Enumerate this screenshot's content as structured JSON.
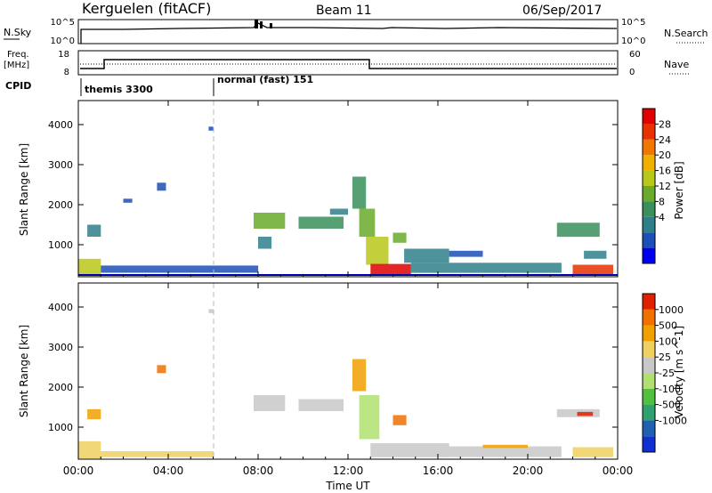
{
  "header": {
    "station": "Kerguelen (fitACF)",
    "beam": "Beam 11",
    "date": "06/Sep/2017"
  },
  "top_panel": {
    "left_label": "N.Sky",
    "left_ticks": [
      "10^5",
      "10^0"
    ],
    "right_ticks": [
      "10^5",
      "10^0"
    ],
    "right_label": "N.Search",
    "right_line_style": "dotted"
  },
  "freq_panel": {
    "left_label_1": "Freq.",
    "left_label_2": "[MHz]",
    "left_ticks": [
      "18",
      "8"
    ],
    "right_ticks": [
      "60",
      "0"
    ],
    "right_label": "Nave",
    "right_line_style": "dotted"
  },
  "cpid_panel": {
    "label": "CPID",
    "programs": [
      {
        "name": "themis 3300",
        "start_hour": 0
      },
      {
        "name": "normal (fast) 151",
        "start_hour": 6
      }
    ]
  },
  "x_axis": {
    "label": "Time UT",
    "ticks": [
      "00:00",
      "04:00",
      "08:00",
      "12:00",
      "16:00",
      "20:00",
      "00:00"
    ]
  },
  "power_colorbar": {
    "label": "Power [dB]",
    "ticks": [
      "28",
      "24",
      "20",
      "16",
      "12",
      "8",
      "4"
    ],
    "colors": [
      "#0000ee",
      "#1c4fb8",
      "#2f7f8a",
      "#3a8f5a",
      "#6aaa2a",
      "#b8c81a",
      "#f0b000",
      "#f07800",
      "#e83000",
      "#e00000"
    ]
  },
  "velocity_colorbar": {
    "label": "Velocity [m s^-1]",
    "ticks": [
      "1000",
      "500",
      "100",
      "25",
      "-25",
      "-100",
      "-500",
      "-1000"
    ],
    "colors": [
      "#1030d0",
      "#2060b0",
      "#30a070",
      "#50c040",
      "#b0e070",
      "#c8c8c8",
      "#f0d060",
      "#f0a000",
      "#f07000",
      "#e02000"
    ]
  },
  "chart_data": [
    {
      "type": "heatmap",
      "name": "power",
      "ylabel": "Slant Range [km]",
      "ylim": [
        200,
        4600
      ],
      "yticks": [
        1000,
        2000,
        3000,
        4000
      ],
      "xlim": [
        0,
        24
      ],
      "grid": false,
      "patches": [
        {
          "t0": 0.0,
          "t1": 1.0,
          "r0": 220,
          "r1": 650,
          "level": 5
        },
        {
          "t0": 0.4,
          "t1": 1.0,
          "r0": 1200,
          "r1": 1500,
          "level": 2
        },
        {
          "t0": 1.0,
          "t1": 8.0,
          "r0": 300,
          "r1": 480,
          "level": 1
        },
        {
          "t0": 2.0,
          "t1": 2.4,
          "r0": 2050,
          "r1": 2150,
          "level": 1
        },
        {
          "t0": 3.5,
          "t1": 3.9,
          "r0": 2350,
          "r1": 2550,
          "level": 1
        },
        {
          "t0": 5.8,
          "t1": 6.0,
          "r0": 3850,
          "r1": 3950,
          "level": 1
        },
        {
          "t0": 7.8,
          "t1": 9.2,
          "r0": 1400,
          "r1": 1800,
          "level": 4
        },
        {
          "t0": 8.0,
          "t1": 8.6,
          "r0": 900,
          "r1": 1200,
          "level": 2
        },
        {
          "t0": 9.8,
          "t1": 11.8,
          "r0": 1400,
          "r1": 1700,
          "level": 3
        },
        {
          "t0": 11.2,
          "t1": 12.0,
          "r0": 1750,
          "r1": 1900,
          "level": 2
        },
        {
          "t0": 12.2,
          "t1": 12.8,
          "r0": 1900,
          "r1": 2700,
          "level": 3
        },
        {
          "t0": 12.5,
          "t1": 13.2,
          "r0": 1200,
          "r1": 1900,
          "level": 4
        },
        {
          "t0": 12.8,
          "t1": 13.8,
          "r0": 500,
          "r1": 1200,
          "level": 5
        },
        {
          "t0": 13.0,
          "t1": 14.8,
          "r0": 250,
          "r1": 520,
          "level": 9
        },
        {
          "t0": 14.0,
          "t1": 14.6,
          "r0": 1050,
          "r1": 1300,
          "level": 4
        },
        {
          "t0": 14.5,
          "t1": 16.5,
          "r0": 550,
          "r1": 900,
          "level": 2
        },
        {
          "t0": 14.8,
          "t1": 21.5,
          "r0": 300,
          "r1": 550,
          "level": 2
        },
        {
          "t0": 16.5,
          "t1": 18.0,
          "r0": 700,
          "r1": 850,
          "level": 1
        },
        {
          "t0": 21.3,
          "t1": 23.2,
          "r0": 1200,
          "r1": 1550,
          "level": 3
        },
        {
          "t0": 22.0,
          "t1": 23.8,
          "r0": 250,
          "r1": 500,
          "level": 8
        },
        {
          "t0": 22.5,
          "t1": 23.5,
          "r0": 650,
          "r1": 850,
          "level": 2
        }
      ]
    },
    {
      "type": "heatmap",
      "name": "velocity",
      "ylabel": "Slant Range [km]",
      "ylim": [
        200,
        4600
      ],
      "yticks": [
        1000,
        2000,
        3000,
        4000
      ],
      "xlim": [
        0,
        24
      ],
      "grid": false,
      "patches": [
        {
          "t0": 0.0,
          "t1": 1.0,
          "r0": 220,
          "r1": 650,
          "level": 6
        },
        {
          "t0": 0.4,
          "t1": 1.0,
          "r0": 1200,
          "r1": 1450,
          "level": 7
        },
        {
          "t0": 1.0,
          "t1": 6.0,
          "r0": 250,
          "r1": 400,
          "level": 6
        },
        {
          "t0": 3.5,
          "t1": 3.9,
          "r0": 2350,
          "r1": 2550,
          "level": 8
        },
        {
          "t0": 5.8,
          "t1": 6.0,
          "r0": 3850,
          "r1": 3950,
          "level": 5
        },
        {
          "t0": 7.8,
          "t1": 9.2,
          "r0": 1400,
          "r1": 1800,
          "level": 5
        },
        {
          "t0": 9.8,
          "t1": 11.8,
          "r0": 1400,
          "r1": 1700,
          "level": 5
        },
        {
          "t0": 12.2,
          "t1": 12.8,
          "r0": 1900,
          "r1": 2700,
          "level": 7
        },
        {
          "t0": 12.5,
          "t1": 13.4,
          "r0": 700,
          "r1": 1800,
          "level": 4
        },
        {
          "t0": 13.0,
          "t1": 16.5,
          "r0": 250,
          "r1": 600,
          "level": 5
        },
        {
          "t0": 14.0,
          "t1": 14.6,
          "r0": 1050,
          "r1": 1300,
          "level": 8
        },
        {
          "t0": 16.5,
          "t1": 21.5,
          "r0": 250,
          "r1": 520,
          "level": 5
        },
        {
          "t0": 18.0,
          "t1": 20.0,
          "r0": 480,
          "r1": 560,
          "level": 7
        },
        {
          "t0": 21.3,
          "t1": 23.2,
          "r0": 1250,
          "r1": 1450,
          "level": 5
        },
        {
          "t0": 22.2,
          "t1": 22.9,
          "r0": 1280,
          "r1": 1380,
          "level": 9
        },
        {
          "t0": 22.0,
          "t1": 23.8,
          "r0": 250,
          "r1": 500,
          "level": 6
        }
      ]
    }
  ]
}
